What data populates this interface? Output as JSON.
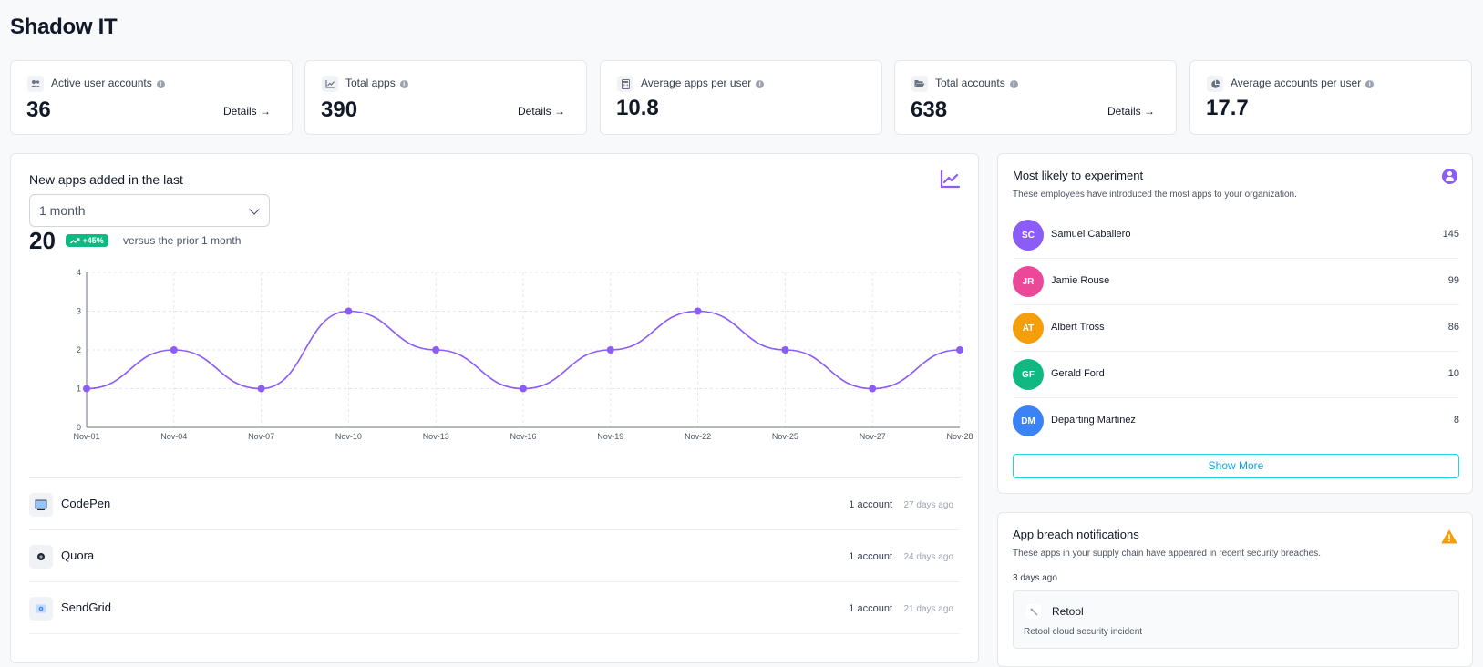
{
  "page": {
    "title": "Shadow IT"
  },
  "stats": [
    {
      "label": "Active user accounts",
      "value": "36",
      "details": "Details →",
      "icon": "users-icon"
    },
    {
      "label": "Total apps",
      "value": "390",
      "details": "Details →",
      "icon": "chart-line-icon"
    },
    {
      "label": "Average apps per user",
      "value": "10.8",
      "details": null,
      "icon": "calculator-icon"
    },
    {
      "label": "Total accounts",
      "value": "638",
      "details": "Details →",
      "icon": "folder-open-icon"
    },
    {
      "label": "Average accounts per user",
      "value": "17.7",
      "details": null,
      "icon": "pie-chart-icon"
    }
  ],
  "new_apps": {
    "heading": "New apps added in the last",
    "period": "1 month",
    "count": "20",
    "change": "+45%",
    "versus": "versus the prior 1 month"
  },
  "chart_data": {
    "type": "line",
    "title": "",
    "xlabel": "",
    "ylabel": "",
    "categories": [
      "Nov-01",
      "Nov-04",
      "Nov-07",
      "Nov-10",
      "Nov-13",
      "Nov-16",
      "Nov-19",
      "Nov-22",
      "Nov-25",
      "Nov-27",
      "Nov-28"
    ],
    "values": [
      1,
      2,
      1,
      3,
      2,
      1,
      2,
      3,
      2,
      1,
      2
    ],
    "ylim": [
      0,
      4
    ],
    "yticks": [
      "0",
      "1",
      "2",
      "3",
      "4"
    ],
    "grid": true,
    "color": "#8b5cf6"
  },
  "apps": [
    {
      "name": "CodePen",
      "accounts": "1 account",
      "ago": "27 days ago",
      "icon": "codepen-icon"
    },
    {
      "name": "Quora",
      "accounts": "1 account",
      "ago": "24 days ago",
      "icon": "quora-icon"
    },
    {
      "name": "SendGrid",
      "accounts": "1 account",
      "ago": "21 days ago",
      "icon": "sendgrid-icon"
    }
  ],
  "experiment": {
    "title": "Most likely to experiment",
    "subtitle": "These employees have introduced the most apps to your organization.",
    "people": [
      {
        "initials": "SC",
        "name": "Samuel Caballero",
        "count": "145",
        "color": "#8b5cf6"
      },
      {
        "initials": "JR",
        "name": "Jamie Rouse",
        "count": "99",
        "color": "#ec4899"
      },
      {
        "initials": "AT",
        "name": "Albert Tross",
        "count": "86",
        "color": "#f59e0b"
      },
      {
        "initials": "GF",
        "name": "Gerald Ford",
        "count": "10",
        "color": "#10b981"
      },
      {
        "initials": "DM",
        "name": "Departing Martinez",
        "count": "8",
        "color": "#3b82f6"
      }
    ],
    "show_more": "Show More"
  },
  "breach": {
    "title": "App breach notifications",
    "subtitle": "These apps in your supply chain have appeared in recent security breaches.",
    "when": "3 days ago",
    "app": "Retool",
    "description": "Retool cloud security incident"
  }
}
